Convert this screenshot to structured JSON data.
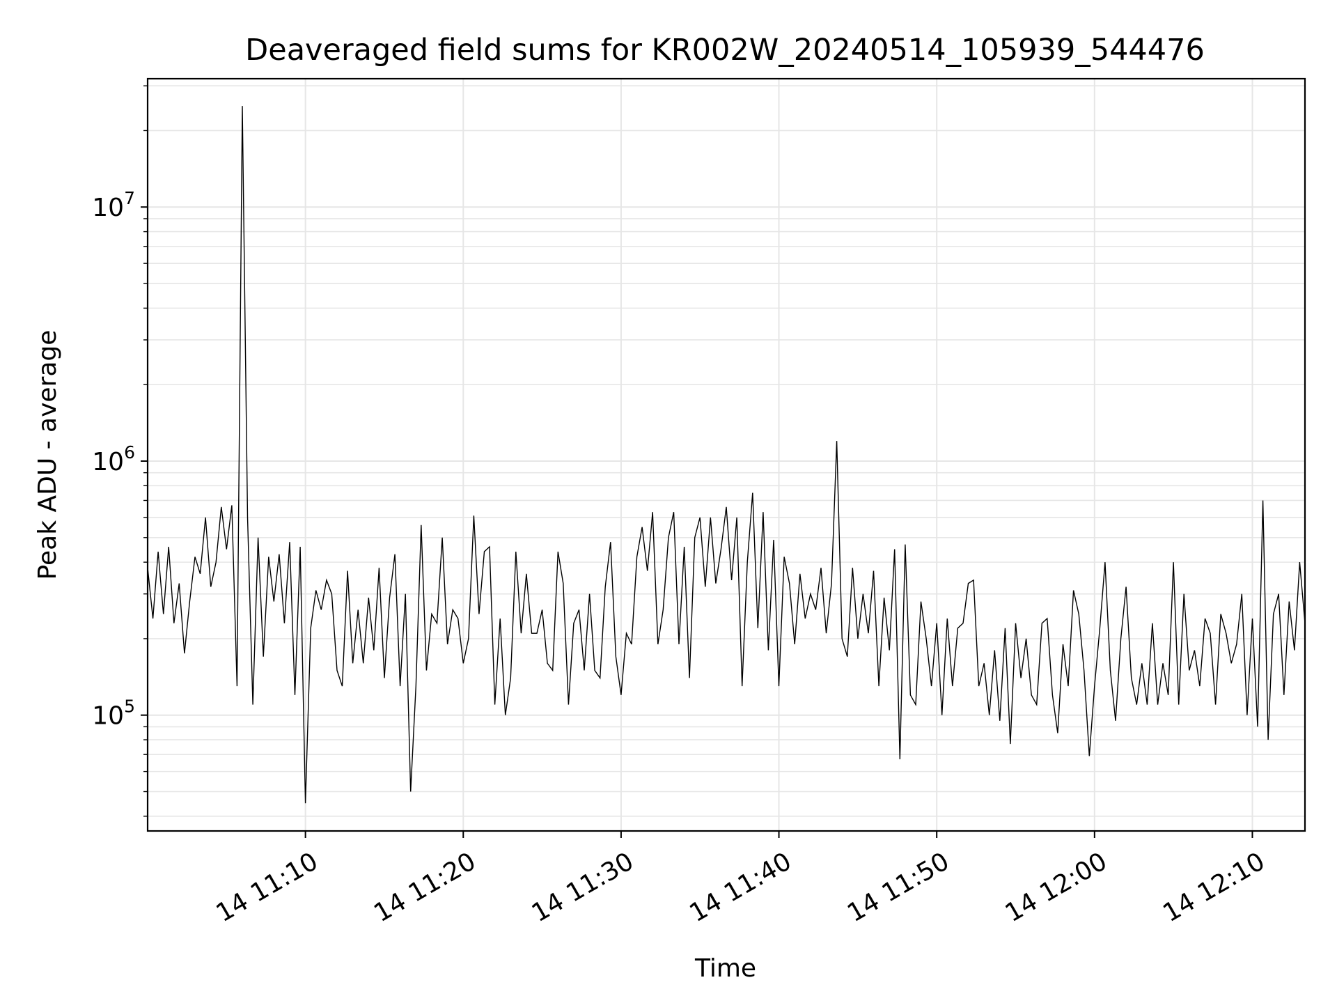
{
  "chart_data": {
    "type": "line",
    "title": "Deaveraged field sums for KR002W_20240514_105939_544476",
    "xlabel": "Time",
    "ylabel": "Peak ADU - average",
    "xlim": [
      "2024-05-14T11:00:00",
      "2024-05-14T12:13:20"
    ],
    "ylim": [
      35000,
      32000000
    ],
    "yscale": "log",
    "grid": true,
    "x_ticks": [
      {
        "t": "2024-05-14T11:10:00",
        "label": "14 11:10"
      },
      {
        "t": "2024-05-14T11:20:00",
        "label": "14 11:20"
      },
      {
        "t": "2024-05-14T11:30:00",
        "label": "14 11:30"
      },
      {
        "t": "2024-05-14T11:40:00",
        "label": "14 11:40"
      },
      {
        "t": "2024-05-14T11:50:00",
        "label": "14 11:50"
      },
      {
        "t": "2024-05-14T12:00:00",
        "label": "14 12:00"
      },
      {
        "t": "2024-05-14T12:10:00",
        "label": "14 12:10"
      }
    ],
    "y_ticks": [
      {
        "value": 100000,
        "base": "10",
        "exp": "5"
      },
      {
        "value": 1000000,
        "base": "10",
        "exp": "6"
      },
      {
        "value": 10000000,
        "base": "10",
        "exp": "7"
      }
    ],
    "series": [
      {
        "color": "#000000",
        "points": [
          [
            "2024-05-14T11:00:00",
            380000
          ],
          [
            "2024-05-14T11:00:20",
            240000
          ],
          [
            "2024-05-14T11:00:40",
            440000
          ],
          [
            "2024-05-14T11:01:00",
            250000
          ],
          [
            "2024-05-14T11:01:20",
            460000
          ],
          [
            "2024-05-14T11:01:40",
            230000
          ],
          [
            "2024-05-14T11:02:00",
            330000
          ],
          [
            "2024-05-14T11:02:20",
            175000
          ],
          [
            "2024-05-14T11:02:40",
            280000
          ],
          [
            "2024-05-14T11:03:00",
            420000
          ],
          [
            "2024-05-14T11:03:20",
            360000
          ],
          [
            "2024-05-14T11:03:40",
            600000
          ],
          [
            "2024-05-14T11:04:00",
            320000
          ],
          [
            "2024-05-14T11:04:20",
            400000
          ],
          [
            "2024-05-14T11:04:40",
            660000
          ],
          [
            "2024-05-14T11:05:00",
            450000
          ],
          [
            "2024-05-14T11:05:20",
            670000
          ],
          [
            "2024-05-14T11:05:40",
            130000
          ],
          [
            "2024-05-14T11:06:00",
            25000000
          ],
          [
            "2024-05-14T11:06:20",
            600000
          ],
          [
            "2024-05-14T11:06:40",
            110000
          ],
          [
            "2024-05-14T11:07:00",
            500000
          ],
          [
            "2024-05-14T11:07:20",
            170000
          ],
          [
            "2024-05-14T11:07:40",
            420000
          ],
          [
            "2024-05-14T11:08:00",
            280000
          ],
          [
            "2024-05-14T11:08:20",
            430000
          ],
          [
            "2024-05-14T11:08:40",
            230000
          ],
          [
            "2024-05-14T11:09:00",
            480000
          ],
          [
            "2024-05-14T11:09:20",
            120000
          ],
          [
            "2024-05-14T11:09:40",
            460000
          ],
          [
            "2024-05-14T11:10:00",
            45000
          ],
          [
            "2024-05-14T11:10:20",
            220000
          ],
          [
            "2024-05-14T11:10:40",
            310000
          ],
          [
            "2024-05-14T11:11:00",
            260000
          ],
          [
            "2024-05-14T11:11:20",
            340000
          ],
          [
            "2024-05-14T11:11:40",
            300000
          ],
          [
            "2024-05-14T11:12:00",
            150000
          ],
          [
            "2024-05-14T11:12:20",
            130000
          ],
          [
            "2024-05-14T11:12:40",
            370000
          ],
          [
            "2024-05-14T11:13:00",
            160000
          ],
          [
            "2024-05-14T11:13:20",
            260000
          ],
          [
            "2024-05-14T11:13:40",
            160000
          ],
          [
            "2024-05-14T11:14:00",
            290000
          ],
          [
            "2024-05-14T11:14:20",
            180000
          ],
          [
            "2024-05-14T11:14:40",
            380000
          ],
          [
            "2024-05-14T11:15:00",
            140000
          ],
          [
            "2024-05-14T11:15:20",
            290000
          ],
          [
            "2024-05-14T11:15:40",
            430000
          ],
          [
            "2024-05-14T11:16:00",
            130000
          ],
          [
            "2024-05-14T11:16:20",
            300000
          ],
          [
            "2024-05-14T11:16:40",
            50000
          ],
          [
            "2024-05-14T11:17:00",
            130000
          ],
          [
            "2024-05-14T11:17:20",
            560000
          ],
          [
            "2024-05-14T11:17:40",
            150000
          ],
          [
            "2024-05-14T11:18:00",
            250000
          ],
          [
            "2024-05-14T11:18:20",
            230000
          ],
          [
            "2024-05-14T11:18:40",
            500000
          ],
          [
            "2024-05-14T11:19:00",
            190000
          ],
          [
            "2024-05-14T11:19:20",
            260000
          ],
          [
            "2024-05-14T11:19:40",
            240000
          ],
          [
            "2024-05-14T11:20:00",
            160000
          ],
          [
            "2024-05-14T11:20:20",
            200000
          ],
          [
            "2024-05-14T11:20:40",
            610000
          ],
          [
            "2024-05-14T11:21:00",
            250000
          ],
          [
            "2024-05-14T11:21:20",
            440000
          ],
          [
            "2024-05-14T11:21:40",
            460000
          ],
          [
            "2024-05-14T11:22:00",
            110000
          ],
          [
            "2024-05-14T11:22:20",
            240000
          ],
          [
            "2024-05-14T11:22:40",
            100000
          ],
          [
            "2024-05-14T11:23:00",
            140000
          ],
          [
            "2024-05-14T11:23:20",
            440000
          ],
          [
            "2024-05-14T11:23:40",
            210000
          ],
          [
            "2024-05-14T11:24:00",
            360000
          ],
          [
            "2024-05-14T11:24:20",
            210000
          ],
          [
            "2024-05-14T11:24:40",
            210000
          ],
          [
            "2024-05-14T11:25:00",
            260000
          ],
          [
            "2024-05-14T11:25:20",
            160000
          ],
          [
            "2024-05-14T11:25:40",
            150000
          ],
          [
            "2024-05-14T11:26:00",
            440000
          ],
          [
            "2024-05-14T11:26:20",
            330000
          ],
          [
            "2024-05-14T11:26:40",
            110000
          ],
          [
            "2024-05-14T11:27:00",
            230000
          ],
          [
            "2024-05-14T11:27:20",
            260000
          ],
          [
            "2024-05-14T11:27:40",
            150000
          ],
          [
            "2024-05-14T11:28:00",
            300000
          ],
          [
            "2024-05-14T11:28:20",
            150000
          ],
          [
            "2024-05-14T11:28:40",
            140000
          ],
          [
            "2024-05-14T11:29:00",
            320000
          ],
          [
            "2024-05-14T11:29:20",
            480000
          ],
          [
            "2024-05-14T11:29:40",
            170000
          ],
          [
            "2024-05-14T11:30:00",
            120000
          ],
          [
            "2024-05-14T11:30:20",
            210000
          ],
          [
            "2024-05-14T11:30:40",
            190000
          ],
          [
            "2024-05-14T11:31:00",
            420000
          ],
          [
            "2024-05-14T11:31:20",
            550000
          ],
          [
            "2024-05-14T11:31:40",
            370000
          ],
          [
            "2024-05-14T11:32:00",
            630000
          ],
          [
            "2024-05-14T11:32:20",
            190000
          ],
          [
            "2024-05-14T11:32:40",
            260000
          ],
          [
            "2024-05-14T11:33:00",
            500000
          ],
          [
            "2024-05-14T11:33:20",
            630000
          ],
          [
            "2024-05-14T11:33:40",
            190000
          ],
          [
            "2024-05-14T11:34:00",
            460000
          ],
          [
            "2024-05-14T11:34:20",
            140000
          ],
          [
            "2024-05-14T11:34:40",
            500000
          ],
          [
            "2024-05-14T11:35:00",
            600000
          ],
          [
            "2024-05-14T11:35:20",
            320000
          ],
          [
            "2024-05-14T11:35:40",
            600000
          ],
          [
            "2024-05-14T11:36:00",
            330000
          ],
          [
            "2024-05-14T11:36:20",
            450000
          ],
          [
            "2024-05-14T11:36:40",
            660000
          ],
          [
            "2024-05-14T11:37:00",
            340000
          ],
          [
            "2024-05-14T11:37:20",
            600000
          ],
          [
            "2024-05-14T11:37:40",
            130000
          ],
          [
            "2024-05-14T11:38:00",
            400000
          ],
          [
            "2024-05-14T11:38:20",
            750000
          ],
          [
            "2024-05-14T11:38:40",
            220000
          ],
          [
            "2024-05-14T11:39:00",
            630000
          ],
          [
            "2024-05-14T11:39:20",
            180000
          ],
          [
            "2024-05-14T11:39:40",
            490000
          ],
          [
            "2024-05-14T11:40:00",
            130000
          ],
          [
            "2024-05-14T11:40:20",
            420000
          ],
          [
            "2024-05-14T11:40:40",
            330000
          ],
          [
            "2024-05-14T11:41:00",
            190000
          ],
          [
            "2024-05-14T11:41:20",
            360000
          ],
          [
            "2024-05-14T11:41:40",
            240000
          ],
          [
            "2024-05-14T11:42:00",
            300000
          ],
          [
            "2024-05-14T11:42:20",
            260000
          ],
          [
            "2024-05-14T11:42:40",
            380000
          ],
          [
            "2024-05-14T11:43:00",
            210000
          ],
          [
            "2024-05-14T11:43:20",
            330000
          ],
          [
            "2024-05-14T11:43:40",
            1200000
          ],
          [
            "2024-05-14T11:44:00",
            200000
          ],
          [
            "2024-05-14T11:44:20",
            170000
          ],
          [
            "2024-05-14T11:44:40",
            380000
          ],
          [
            "2024-05-14T11:45:00",
            200000
          ],
          [
            "2024-05-14T11:45:20",
            300000
          ],
          [
            "2024-05-14T11:45:40",
            210000
          ],
          [
            "2024-05-14T11:46:00",
            370000
          ],
          [
            "2024-05-14T11:46:20",
            130000
          ],
          [
            "2024-05-14T11:46:40",
            290000
          ],
          [
            "2024-05-14T11:47:00",
            180000
          ],
          [
            "2024-05-14T11:47:20",
            450000
          ],
          [
            "2024-05-14T11:47:40",
            67000
          ],
          [
            "2024-05-14T11:48:00",
            470000
          ],
          [
            "2024-05-14T11:48:20",
            120000
          ],
          [
            "2024-05-14T11:48:40",
            110000
          ],
          [
            "2024-05-14T11:49:00",
            280000
          ],
          [
            "2024-05-14T11:49:20",
            200000
          ],
          [
            "2024-05-14T11:49:40",
            130000
          ],
          [
            "2024-05-14T11:50:00",
            230000
          ],
          [
            "2024-05-14T11:50:20",
            100000
          ],
          [
            "2024-05-14T11:50:40",
            240000
          ],
          [
            "2024-05-14T11:51:00",
            130000
          ],
          [
            "2024-05-14T11:51:20",
            220000
          ],
          [
            "2024-05-14T11:51:40",
            230000
          ],
          [
            "2024-05-14T11:52:00",
            330000
          ],
          [
            "2024-05-14T11:52:20",
            340000
          ],
          [
            "2024-05-14T11:52:40",
            130000
          ],
          [
            "2024-05-14T11:53:00",
            160000
          ],
          [
            "2024-05-14T11:53:20",
            100000
          ],
          [
            "2024-05-14T11:53:40",
            180000
          ],
          [
            "2024-05-14T11:54:00",
            95000
          ],
          [
            "2024-05-14T11:54:20",
            220000
          ],
          [
            "2024-05-14T11:54:40",
            77000
          ],
          [
            "2024-05-14T11:55:00",
            230000
          ],
          [
            "2024-05-14T11:55:20",
            140000
          ],
          [
            "2024-05-14T11:55:40",
            200000
          ],
          [
            "2024-05-14T11:56:00",
            120000
          ],
          [
            "2024-05-14T11:56:20",
            110000
          ],
          [
            "2024-05-14T11:56:40",
            230000
          ],
          [
            "2024-05-14T11:57:00",
            240000
          ],
          [
            "2024-05-14T11:57:20",
            120000
          ],
          [
            "2024-05-14T11:57:40",
            85000
          ],
          [
            "2024-05-14T11:58:00",
            190000
          ],
          [
            "2024-05-14T11:58:20",
            130000
          ],
          [
            "2024-05-14T11:58:40",
            310000
          ],
          [
            "2024-05-14T11:59:00",
            250000
          ],
          [
            "2024-05-14T11:59:20",
            150000
          ],
          [
            "2024-05-14T11:59:40",
            69000
          ],
          [
            "2024-05-14T12:00:00",
            130000
          ],
          [
            "2024-05-14T12:00:20",
            220000
          ],
          [
            "2024-05-14T12:00:40",
            400000
          ],
          [
            "2024-05-14T12:01:00",
            150000
          ],
          [
            "2024-05-14T12:01:20",
            95000
          ],
          [
            "2024-05-14T12:01:40",
            200000
          ],
          [
            "2024-05-14T12:02:00",
            320000
          ],
          [
            "2024-05-14T12:02:20",
            140000
          ],
          [
            "2024-05-14T12:02:40",
            110000
          ],
          [
            "2024-05-14T12:03:00",
            160000
          ],
          [
            "2024-05-14T12:03:20",
            110000
          ],
          [
            "2024-05-14T12:03:40",
            230000
          ],
          [
            "2024-05-14T12:04:00",
            110000
          ],
          [
            "2024-05-14T12:04:20",
            160000
          ],
          [
            "2024-05-14T12:04:40",
            120000
          ],
          [
            "2024-05-14T12:05:00",
            400000
          ],
          [
            "2024-05-14T12:05:20",
            110000
          ],
          [
            "2024-05-14T12:05:40",
            300000
          ],
          [
            "2024-05-14T12:06:00",
            150000
          ],
          [
            "2024-05-14T12:06:20",
            180000
          ],
          [
            "2024-05-14T12:06:40",
            130000
          ],
          [
            "2024-05-14T12:07:00",
            240000
          ],
          [
            "2024-05-14T12:07:20",
            210000
          ],
          [
            "2024-05-14T12:07:40",
            110000
          ],
          [
            "2024-05-14T12:08:00",
            250000
          ],
          [
            "2024-05-14T12:08:20",
            210000
          ],
          [
            "2024-05-14T12:08:40",
            160000
          ],
          [
            "2024-05-14T12:09:00",
            190000
          ],
          [
            "2024-05-14T12:09:20",
            300000
          ],
          [
            "2024-05-14T12:09:40",
            100000
          ],
          [
            "2024-05-14T12:10:00",
            240000
          ],
          [
            "2024-05-14T12:10:20",
            90000
          ],
          [
            "2024-05-14T12:10:40",
            700000
          ],
          [
            "2024-05-14T12:11:00",
            80000
          ],
          [
            "2024-05-14T12:11:20",
            250000
          ],
          [
            "2024-05-14T12:11:40",
            300000
          ],
          [
            "2024-05-14T12:12:00",
            120000
          ],
          [
            "2024-05-14T12:12:20",
            280000
          ],
          [
            "2024-05-14T12:12:40",
            180000
          ],
          [
            "2024-05-14T12:13:00",
            400000
          ],
          [
            "2024-05-14T12:13:20",
            230000
          ]
        ]
      }
    ]
  }
}
